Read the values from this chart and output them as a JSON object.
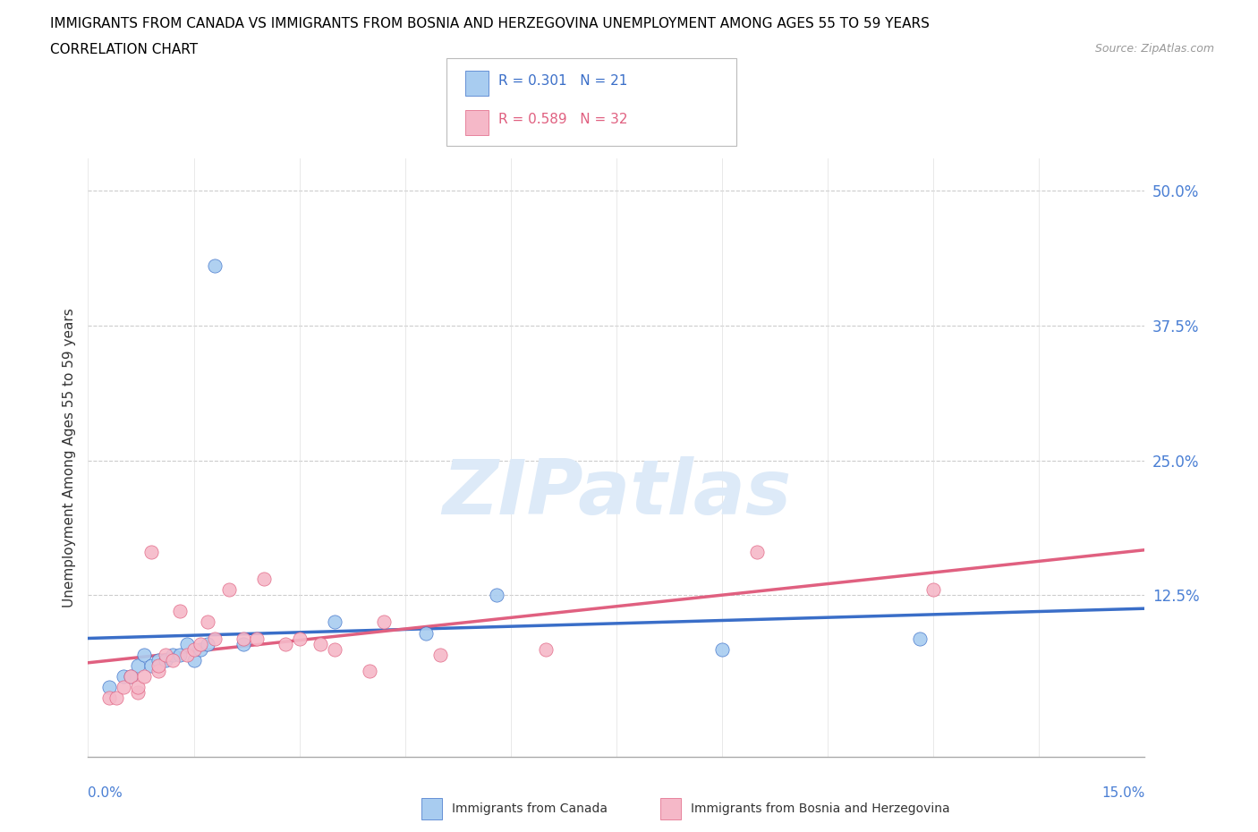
{
  "title_line1": "IMMIGRANTS FROM CANADA VS IMMIGRANTS FROM BOSNIA AND HERZEGOVINA UNEMPLOYMENT AMONG AGES 55 TO 59 YEARS",
  "title_line2": "CORRELATION CHART",
  "source": "Source: ZipAtlas.com",
  "ylabel": "Unemployment Among Ages 55 to 59 years",
  "ytick_vals": [
    0.0,
    0.125,
    0.25,
    0.375,
    0.5
  ],
  "ytick_labels": [
    "",
    "12.5%",
    "25.0%",
    "37.5%",
    "50.0%"
  ],
  "xmin": 0.0,
  "xmax": 0.15,
  "ymin": -0.025,
  "ymax": 0.53,
  "legend_r1": "R = 0.301",
  "legend_n1": "N = 21",
  "legend_r2": "R = 0.589",
  "legend_n2": "N = 32",
  "color_canada": "#a8ccf0",
  "color_bosnia": "#f5b8c8",
  "trendline_color_canada": "#3a6ec8",
  "trendline_color_bosnia": "#e06080",
  "tick_color": "#4a7fd4",
  "watermark_color": "#ddeaf8",
  "canada_x": [
    0.003,
    0.005,
    0.006,
    0.007,
    0.008,
    0.009,
    0.01,
    0.011,
    0.012,
    0.013,
    0.014,
    0.015,
    0.016,
    0.017,
    0.018,
    0.022,
    0.035,
    0.048,
    0.058,
    0.09,
    0.118
  ],
  "canada_y": [
    0.04,
    0.05,
    0.05,
    0.06,
    0.07,
    0.06,
    0.065,
    0.065,
    0.07,
    0.07,
    0.08,
    0.065,
    0.075,
    0.08,
    0.43,
    0.08,
    0.1,
    0.09,
    0.125,
    0.075,
    0.085
  ],
  "bosnia_x": [
    0.003,
    0.004,
    0.005,
    0.006,
    0.007,
    0.007,
    0.008,
    0.009,
    0.01,
    0.01,
    0.011,
    0.012,
    0.013,
    0.014,
    0.015,
    0.016,
    0.017,
    0.018,
    0.02,
    0.022,
    0.024,
    0.025,
    0.028,
    0.03,
    0.033,
    0.035,
    0.04,
    0.042,
    0.05,
    0.065,
    0.095,
    0.12
  ],
  "bosnia_y": [
    0.03,
    0.03,
    0.04,
    0.05,
    0.035,
    0.04,
    0.05,
    0.165,
    0.055,
    0.06,
    0.07,
    0.065,
    0.11,
    0.07,
    0.075,
    0.08,
    0.1,
    0.085,
    0.13,
    0.085,
    0.085,
    0.14,
    0.08,
    0.085,
    0.08,
    0.075,
    0.055,
    0.1,
    0.07,
    0.075,
    0.165,
    0.13
  ]
}
